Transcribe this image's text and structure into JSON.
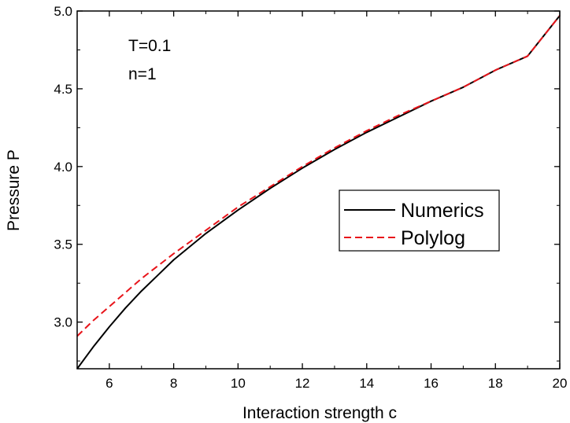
{
  "chart_data": {
    "type": "line",
    "title": "",
    "xlabel": "Interaction strength c",
    "ylabel": "Pressure P",
    "xlim": [
      5,
      20
    ],
    "ylim": [
      2.7,
      5.0
    ],
    "x_ticks": [
      6,
      8,
      10,
      12,
      14,
      16,
      18,
      20
    ],
    "y_ticks": [
      3.0,
      3.5,
      4.0,
      4.5,
      5.0
    ],
    "x_tick_labels": [
      "6",
      "8",
      "10",
      "12",
      "14",
      "16",
      "18",
      "20"
    ],
    "y_tick_labels": [
      "3.0",
      "3.5",
      "4.0",
      "4.5",
      "5.0"
    ],
    "grid": false,
    "legend_position": "center-right",
    "annotations": [
      "T=0.1",
      "n=1"
    ],
    "series": [
      {
        "name": "Numerics",
        "color": "#000000",
        "style": "solid",
        "x": [
          5,
          5.5,
          6,
          6.5,
          7,
          7.5,
          8,
          9,
          10,
          11,
          12,
          13,
          14,
          15,
          16,
          17,
          18,
          19,
          20
        ],
        "y": [
          2.7,
          2.84,
          2.97,
          3.09,
          3.2,
          3.3,
          3.4,
          3.57,
          3.72,
          3.86,
          3.99,
          4.11,
          4.22,
          4.32,
          4.42,
          4.51,
          4.62,
          4.71,
          4.97
        ]
      },
      {
        "name": "Polylog",
        "color": "#e8141a",
        "style": "dashed",
        "x": [
          5,
          5.5,
          6,
          6.5,
          7,
          7.5,
          8,
          9,
          10,
          11,
          12,
          13,
          14,
          15,
          16,
          17,
          18,
          19,
          20
        ],
        "y": [
          2.91,
          3.01,
          3.1,
          3.19,
          3.28,
          3.36,
          3.44,
          3.59,
          3.74,
          3.87,
          4.0,
          4.12,
          4.23,
          4.33,
          4.42,
          4.51,
          4.62,
          4.71,
          4.97
        ]
      }
    ]
  }
}
